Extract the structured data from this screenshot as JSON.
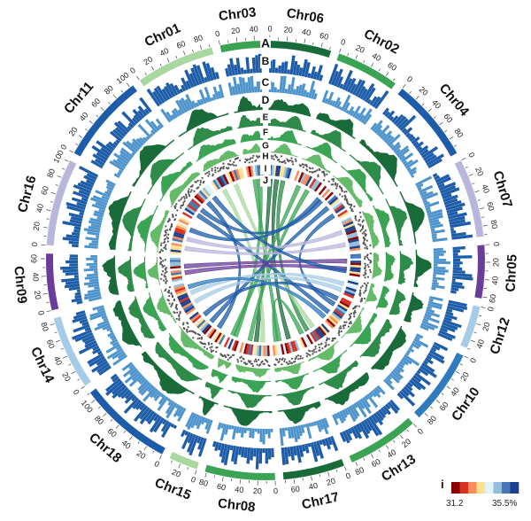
{
  "chromosomes": [
    {
      "name": "Chr06",
      "length": 72,
      "color": "#1a6b3a",
      "ticks": [
        0,
        20,
        40,
        60
      ]
    },
    {
      "name": "Chr02",
      "length": 74,
      "color": "#3aa454",
      "ticks": [
        0,
        20,
        40,
        60
      ]
    },
    {
      "name": "Chr04",
      "length": 98,
      "color": "#1d5ca8",
      "ticks": [
        0,
        20,
        40,
        60,
        80
      ]
    },
    {
      "name": "Chr07",
      "length": 92,
      "color": "#b9b6dc",
      "ticks": [
        0,
        20,
        40,
        60,
        80
      ]
    },
    {
      "name": "Chr05",
      "length": 62,
      "color": "#6a3d9a",
      "ticks": [
        0,
        20,
        40,
        60
      ]
    },
    {
      "name": "Chr12",
      "length": 50,
      "color": "#a5cbe6",
      "ticks": [
        0,
        20,
        40
      ]
    },
    {
      "name": "Chr10",
      "length": 88,
      "color": "#2e7bbd",
      "ticks": [
        0,
        20,
        40,
        60,
        80
      ]
    },
    {
      "name": "Chr13",
      "length": 84,
      "color": "#3aa454",
      "ticks": [
        0,
        20,
        40,
        60,
        80
      ]
    },
    {
      "name": "Chr17",
      "length": 72,
      "color": "#1a6b3a",
      "ticks": [
        0,
        20,
        40,
        60
      ]
    },
    {
      "name": "Chr08",
      "length": 82,
      "color": "#3aa454",
      "ticks": [
        0,
        20,
        40,
        60,
        80
      ]
    },
    {
      "name": "Chr15",
      "length": 34,
      "color": "#a8d8a0",
      "ticks": [
        0,
        20
      ]
    },
    {
      "name": "Chr18",
      "length": 110,
      "color": "#1d5ca8",
      "ticks": [
        0,
        20,
        40,
        60,
        80,
        100
      ]
    },
    {
      "name": "Chr14",
      "length": 86,
      "color": "#a5cbe6",
      "ticks": [
        0,
        20,
        40,
        60,
        80
      ]
    },
    {
      "name": "Chr09",
      "length": 66,
      "color": "#6a3d9a",
      "ticks": [
        0,
        20,
        40,
        60
      ]
    },
    {
      "name": "Chr16",
      "length": 102,
      "color": "#b9b6dc",
      "ticks": [
        0,
        20,
        40,
        60,
        80,
        100
      ]
    },
    {
      "name": "Chr11",
      "length": 104,
      "color": "#1d5ca8",
      "ticks": [
        0,
        20,
        40,
        60,
        80,
        100
      ]
    },
    {
      "name": "Chr01",
      "length": 92,
      "color": "#a8d8a0",
      "ticks": [
        0,
        20,
        40,
        60,
        80
      ]
    },
    {
      "name": "Chr03",
      "length": 48,
      "color": "#3aa454",
      "ticks": [
        0,
        20,
        40
      ]
    }
  ],
  "tracks": [
    {
      "letter": "A",
      "kind": "ideogram"
    },
    {
      "letter": "B",
      "kind": "bars",
      "color": "#1d5ca8"
    },
    {
      "letter": "C",
      "kind": "bars",
      "color": "#4d93cc"
    },
    {
      "letter": "D",
      "kind": "area",
      "color": "#1a6b3a"
    },
    {
      "letter": "E",
      "kind": "area",
      "color": "#2e8b4a"
    },
    {
      "letter": "F",
      "kind": "area",
      "color": "#3aa454"
    },
    {
      "letter": "G",
      "kind": "area",
      "color": "#66bb6a"
    },
    {
      "letter": "H",
      "kind": "scatter",
      "color": "#555555"
    },
    {
      "letter": "I",
      "kind": "heatmap"
    },
    {
      "letter": "J",
      "kind": "links"
    }
  ],
  "legend": {
    "letter": "i",
    "min_label": "31.2",
    "max_label": "35.5%",
    "colors": [
      "#8b0000",
      "#d7301f",
      "#fc8d59",
      "#fee090",
      "#e0f3f8",
      "#91bfdb",
      "#4575b4",
      "#1d3f8f"
    ]
  },
  "links": [
    {
      "from": [
        "Chr06",
        10
      ],
      "to": [
        "Chr08",
        40
      ],
      "color": "#1a6b3a"
    },
    {
      "from": [
        "Chr06",
        30
      ],
      "to": [
        "Chr17",
        20
      ],
      "color": "#1a6b3a"
    },
    {
      "from": [
        "Chr06",
        50
      ],
      "to": [
        "Chr13",
        50
      ],
      "color": "#2e8b4a"
    },
    {
      "from": [
        "Chr03",
        20
      ],
      "to": [
        "Chr17",
        50
      ],
      "color": "#3aa454"
    },
    {
      "from": [
        "Chr03",
        35
      ],
      "to": [
        "Chr15",
        15
      ],
      "color": "#3aa454"
    },
    {
      "from": [
        "Chr01",
        20
      ],
      "to": [
        "Chr08",
        20
      ],
      "color": "#a8d8a0"
    },
    {
      "from": [
        "Chr01",
        60
      ],
      "to": [
        "Chr13",
        30
      ],
      "color": "#a8d8a0"
    },
    {
      "from": [
        "Chr02",
        20
      ],
      "to": [
        "Chr15",
        25
      ],
      "color": "#3aa454"
    },
    {
      "from": [
        "Chr02",
        50
      ],
      "to": [
        "Chr08",
        60
      ],
      "color": "#3aa454"
    },
    {
      "from": [
        "Chr04",
        20
      ],
      "to": [
        "Chr11",
        40
      ],
      "color": "#1d5ca8"
    },
    {
      "from": [
        "Chr04",
        50
      ],
      "to": [
        "Chr18",
        60
      ],
      "color": "#1d5ca8"
    },
    {
      "from": [
        "Chr04",
        80
      ],
      "to": [
        "Chr10",
        30
      ],
      "color": "#1d5ca8"
    },
    {
      "from": [
        "Chr11",
        20
      ],
      "to": [
        "Chr10",
        60
      ],
      "color": "#1d5ca8"
    },
    {
      "from": [
        "Chr11",
        70
      ],
      "to": [
        "Chr18",
        30
      ],
      "color": "#1d5ca8"
    },
    {
      "from": [
        "Chr18",
        90
      ],
      "to": [
        "Chr10",
        10
      ],
      "color": "#1d5ca8"
    },
    {
      "from": [
        "Chr07",
        30
      ],
      "to": [
        "Chr16",
        50
      ],
      "color": "#b9b6dc"
    },
    {
      "from": [
        "Chr07",
        70
      ],
      "to": [
        "Chr16",
        20
      ],
      "color": "#b9b6dc"
    },
    {
      "from": [
        "Chr05",
        20
      ],
      "to": [
        "Chr09",
        40
      ],
      "color": "#6a3d9a"
    },
    {
      "from": [
        "Chr05",
        45
      ],
      "to": [
        "Chr09",
        20
      ],
      "color": "#6a3d9a"
    },
    {
      "from": [
        "Chr12",
        20
      ],
      "to": [
        "Chr14",
        50
      ],
      "color": "#a5cbe6"
    },
    {
      "from": [
        "Chr12",
        40
      ],
      "to": [
        "Chr14",
        20
      ],
      "color": "#a5cbe6"
    },
    {
      "from": [
        "Chr13",
        70
      ],
      "to": [
        "Chr17",
        60
      ],
      "color": "#3aa454"
    },
    {
      "from": [
        "Chr10",
        80
      ],
      "to": [
        "Chr14",
        70
      ],
      "color": "#2e7bbd"
    },
    {
      "from": [
        "Chr04",
        10
      ],
      "to": [
        "Chr16",
        80
      ],
      "color": "#1d5ca8"
    },
    {
      "from": [
        "Chr11",
        95
      ],
      "to": [
        "Chr05",
        50
      ],
      "color": "#1d5ca8"
    }
  ]
}
